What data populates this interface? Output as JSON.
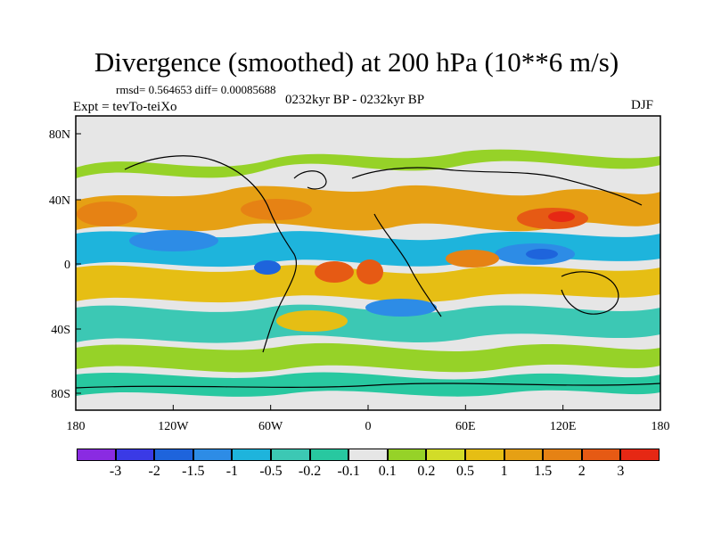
{
  "title": "Divergence (smoothed) at 200 hPa (10**6 m/s)",
  "stats_line": "rmsd= 0.564653 diff= 0.00085688",
  "experiment_line": "Expt = tevTo-teiXo",
  "period_line": "0232kyr BP - 0232kyr BP",
  "season": "DJF",
  "lat_labels": [
    "80N",
    "40N",
    "0",
    "40S",
    "80S"
  ],
  "lon_labels": [
    "180",
    "120W",
    "60W",
    "0",
    "60E",
    "120E",
    "180"
  ],
  "colorbar": {
    "colors": [
      "#8a2be2",
      "#3a3ae6",
      "#1e64dc",
      "#2d8ce6",
      "#1eb4dc",
      "#3cc8b4",
      "#28c8a0",
      "#e6e6e6",
      "#96d228",
      "#d2dc28",
      "#e6be14",
      "#e6a014",
      "#e68214",
      "#e65a14",
      "#e62814"
    ],
    "labels": [
      "-3",
      "-2",
      "-1.5",
      "-1",
      "-0.5",
      "-0.2",
      "-0.1",
      "0.1",
      "0.2",
      "0.5",
      "1",
      "1.5",
      "2",
      "3"
    ]
  }
}
